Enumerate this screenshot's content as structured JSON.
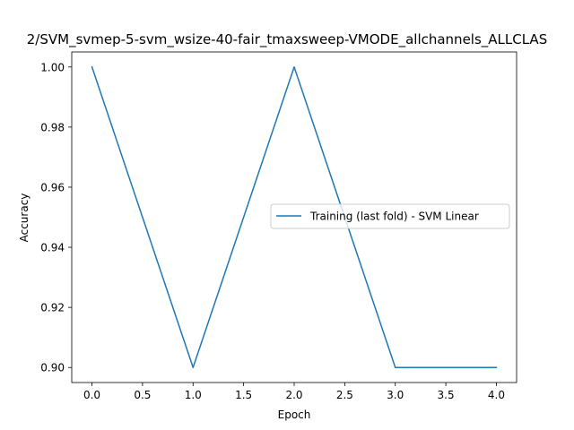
{
  "chart_data": {
    "type": "line",
    "title": "2/SVM_svmep-5-svm_wsize-40-fair_tmaxsweep-VMODE_allchannels_ALLCLAS",
    "xlabel": "Epoch",
    "ylabel": "Accuracy",
    "xlim": [
      -0.2,
      4.2
    ],
    "ylim": [
      0.895,
      1.005
    ],
    "xticks": [
      0.0,
      0.5,
      1.0,
      1.5,
      2.0,
      2.5,
      3.0,
      3.5,
      4.0
    ],
    "xtick_labels": [
      "0.0",
      "0.5",
      "1.0",
      "1.5",
      "2.0",
      "2.5",
      "3.0",
      "3.5",
      "4.0"
    ],
    "yticks": [
      0.9,
      0.92,
      0.94,
      0.96,
      0.98,
      1.0
    ],
    "ytick_labels": [
      "0.90",
      "0.92",
      "0.94",
      "0.96",
      "0.98",
      "1.00"
    ],
    "grid": false,
    "legend_position": "center-right",
    "series": [
      {
        "name": "Training (last fold) - SVM Linear",
        "color": "#1f77b4",
        "x": [
          0,
          1,
          2,
          3,
          4
        ],
        "y": [
          1.0,
          0.9,
          1.0,
          0.9,
          0.9
        ]
      }
    ]
  }
}
